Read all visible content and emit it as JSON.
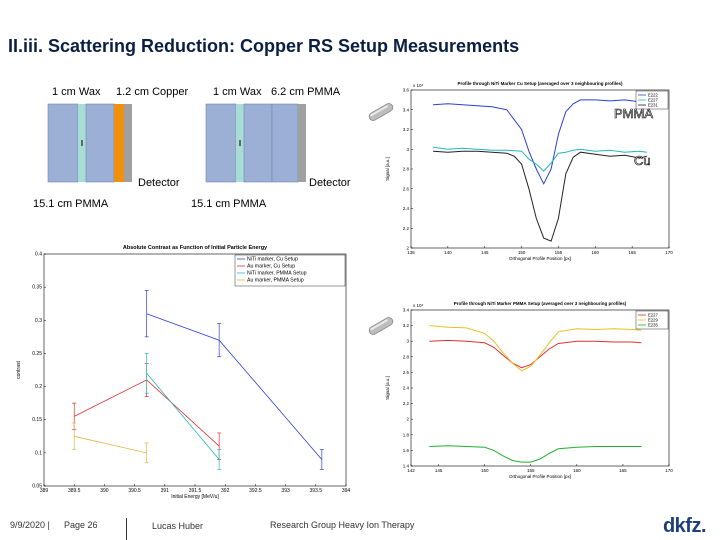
{
  "slide": {
    "title": "II.iii. Scattering Reduction: Copper RS Setup Measurements"
  },
  "setup_diagram": {
    "left": {
      "label_wax": "1 cm Wax",
      "label_absorber": "1.2 cm Copper",
      "label_detector": "Detector",
      "label_bottom": "15.1 cm PMMA"
    },
    "right": {
      "label_wax": "1 cm Wax",
      "label_absorber": "6.2 cm PMMA",
      "label_detector": "Detector",
      "label_bottom": "15.1 cm PMMA"
    },
    "colors": {
      "pmma": "#9bb0d4",
      "wax": "#a8ddd5",
      "copper": "#f0900c",
      "detector": "#a0a0a0"
    }
  },
  "annotations": {
    "pmma": "PMMA",
    "cu": "Cu"
  },
  "chart_data": [
    {
      "type": "line",
      "title": "Absolute Contrast as Function of Initial Particle Energy",
      "xlabel": "Initial Energy [MeV/u]",
      "ylabel": "contrast",
      "xlim": [
        389,
        394
      ],
      "ylim": [
        0.05,
        0.4
      ],
      "xticks": [
        "389",
        "389.5",
        "390",
        "390.5",
        "391",
        "391.5",
        "392",
        "392.5",
        "393",
        "393.5",
        "394"
      ],
      "yticks": [
        "0.05",
        "0.1",
        "0.15",
        "0.2",
        "0.25",
        "0.3",
        "0.35",
        "0.4"
      ],
      "legend_position": "top-right",
      "series": [
        {
          "name": "NiTi marker, Cu Setup",
          "color": "#2b3fd6",
          "x": [
            390.7,
            391.9,
            393.6
          ],
          "y": [
            0.31,
            0.27,
            0.09
          ],
          "err": [
            0.035,
            0.025,
            0.015
          ]
        },
        {
          "name": "Au marker, Cu Setup",
          "color": "#e03030",
          "x": [
            389.5,
            390.7,
            391.9
          ],
          "y": [
            0.155,
            0.21,
            0.11
          ],
          "err": [
            0.02,
            0.025,
            0.02
          ]
        },
        {
          "name": "NiTi marker, PMMA Setup",
          "color": "#22b8b8",
          "x": [
            390.7,
            391.9
          ],
          "y": [
            0.22,
            0.09
          ],
          "err": [
            0.03,
            0.015
          ]
        },
        {
          "name": "Au marker, PMMA Setup",
          "color": "#e8b040",
          "x": [
            389.5,
            390.7
          ],
          "y": [
            0.125,
            0.1
          ],
          "err": [
            0.02,
            0.015
          ]
        }
      ]
    },
    {
      "type": "line",
      "title": "Profile through NiTi Marker Cu Setup (averaged over 3 neighbouring profiles)",
      "exponent": "x 10⁴",
      "xlabel": "Orthogonal Profile Position [px]",
      "ylabel": "Signal [a.u.]",
      "xlim": [
        135,
        170
      ],
      "ylim": [
        2.0,
        3.6
      ],
      "xticks": [
        "135",
        "140",
        "145",
        "150",
        "155",
        "160",
        "165",
        "170"
      ],
      "yticks": [
        "2",
        "2.2",
        "2.4",
        "2.6",
        "2.8",
        "3",
        "3.2",
        "3.4",
        "3.6"
      ],
      "legend_position": "top-right",
      "series": [
        {
          "name": "E222",
          "color": "#2b3fd6",
          "x": [
            138,
            140,
            142,
            144,
            146,
            148,
            150,
            151,
            152,
            153,
            154,
            155,
            156,
            157,
            158,
            160,
            162,
            164,
            166,
            167
          ],
          "y": [
            3.45,
            3.46,
            3.45,
            3.44,
            3.43,
            3.4,
            3.2,
            2.98,
            2.8,
            2.65,
            2.8,
            3.15,
            3.38,
            3.46,
            3.5,
            3.5,
            3.49,
            3.5,
            3.48,
            3.47
          ]
        },
        {
          "name": "E227",
          "color": "#22b8b8",
          "x": [
            138,
            140,
            142,
            144,
            146,
            148,
            150,
            151,
            152,
            153,
            154,
            155,
            156,
            157,
            158,
            160,
            162,
            164,
            166,
            167
          ],
          "y": [
            3.02,
            3.0,
            3.01,
            3.0,
            2.99,
            2.99,
            2.98,
            2.9,
            2.85,
            2.78,
            2.86,
            2.96,
            2.97,
            2.99,
            3.0,
            2.98,
            2.99,
            2.97,
            2.98,
            2.97
          ]
        },
        {
          "name": "E231",
          "color": "#222222",
          "x": [
            138,
            140,
            142,
            144,
            146,
            148,
            149,
            150,
            151,
            152,
            153,
            154,
            155,
            156,
            157,
            158,
            160,
            162,
            164,
            166,
            167
          ],
          "y": [
            2.98,
            2.97,
            2.98,
            2.98,
            2.97,
            2.96,
            2.93,
            2.85,
            2.6,
            2.3,
            2.1,
            2.07,
            2.3,
            2.75,
            2.92,
            2.97,
            2.95,
            2.93,
            2.94,
            2.91,
            2.93
          ]
        }
      ]
    },
    {
      "type": "line",
      "title": "Profile through NiTi Marker PMMA Setup (averaged over 3 neighbouring profiles)",
      "exponent": "x 10⁴",
      "xlabel": "Orthogonal Profile Position [px]",
      "ylabel": "Signal [a.u.]",
      "xlim": [
        142,
        170
      ],
      "ylim": [
        1.4,
        3.4
      ],
      "xticks": [
        "142",
        "145",
        "150",
        "155",
        "160",
        "165",
        "170"
      ],
      "yticks": [
        "1.4",
        "1.6",
        "1.8",
        "2",
        "2.2",
        "2.4",
        "2.6",
        "2.8",
        "3",
        "3.2",
        "3.4"
      ],
      "legend_position": "top-right",
      "series": [
        {
          "name": "E227",
          "color": "#e03030",
          "x": [
            144,
            146,
            148,
            150,
            151,
            152,
            153,
            154,
            155,
            156,
            157,
            158,
            160,
            162,
            164,
            166,
            167
          ],
          "y": [
            3.0,
            3.01,
            3.0,
            2.98,
            2.92,
            2.82,
            2.72,
            2.66,
            2.7,
            2.8,
            2.9,
            2.97,
            3.0,
            3.0,
            2.99,
            2.99,
            2.98
          ]
        },
        {
          "name": "E229",
          "color": "#e8c020",
          "x": [
            144,
            146,
            148,
            150,
            151,
            152,
            153,
            154,
            155,
            156,
            157,
            158,
            160,
            162,
            164,
            166,
            167
          ],
          "y": [
            3.2,
            3.18,
            3.17,
            3.1,
            3.0,
            2.85,
            2.72,
            2.62,
            2.68,
            2.82,
            2.98,
            3.12,
            3.16,
            3.15,
            3.16,
            3.15,
            3.14
          ]
        },
        {
          "name": "E235",
          "color": "#22b030",
          "x": [
            144,
            146,
            148,
            150,
            151,
            152,
            153,
            154,
            155,
            156,
            157,
            158,
            160,
            162,
            164,
            166,
            167
          ],
          "y": [
            1.65,
            1.66,
            1.65,
            1.64,
            1.6,
            1.53,
            1.47,
            1.45,
            1.45,
            1.49,
            1.56,
            1.62,
            1.64,
            1.65,
            1.65,
            1.65,
            1.65
          ]
        }
      ]
    }
  ],
  "footer": {
    "date": "9/9/2020 |",
    "page": "Page 26",
    "author": "Lucas Huber",
    "group": "Research Group Heavy Ion Therapy",
    "logo": "dkfz."
  }
}
